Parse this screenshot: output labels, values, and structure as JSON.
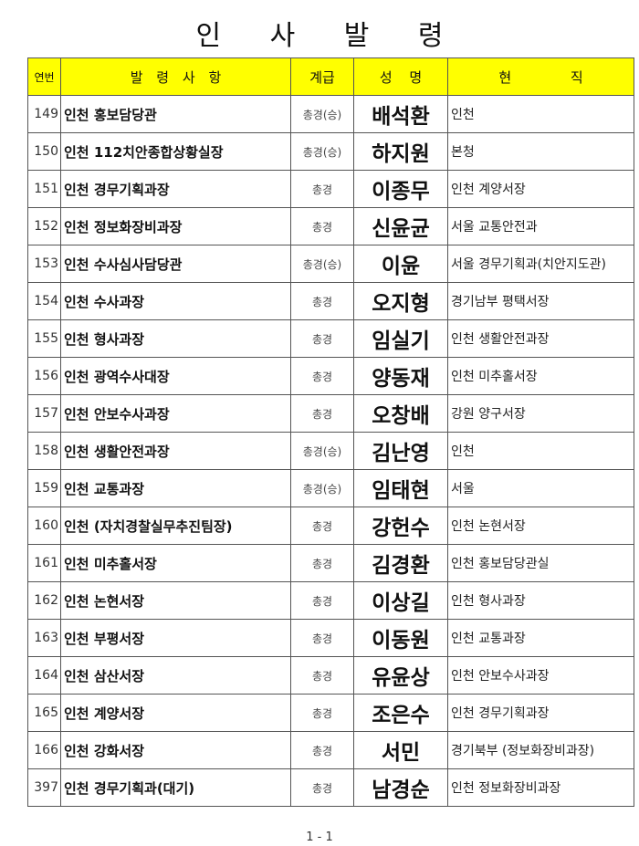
{
  "title": "인 사 발 령",
  "headers": {
    "num": "연번",
    "post": "발 령 사 항",
    "rank": "계급",
    "name": "성 명",
    "current": "현 직"
  },
  "rows": [
    {
      "num": "149",
      "post": "인천 홍보담당관",
      "rank": "총경(승)",
      "name": "배석환",
      "current": "인천"
    },
    {
      "num": "150",
      "post": "인천 112치안종합상황실장",
      "rank": "총경(승)",
      "name": "하지원",
      "current": "본청"
    },
    {
      "num": "151",
      "post": "인천 경무기획과장",
      "rank": "총경",
      "name": "이종무",
      "current": "인천 계양서장"
    },
    {
      "num": "152",
      "post": "인천 정보화장비과장",
      "rank": "총경",
      "name": "신윤균",
      "current": "서울 교통안전과"
    },
    {
      "num": "153",
      "post": "인천 수사심사담당관",
      "rank": "총경(승)",
      "name": "이윤",
      "current": "서울 경무기획과(치안지도관)"
    },
    {
      "num": "154",
      "post": "인천 수사과장",
      "rank": "총경",
      "name": "오지형",
      "current": "경기남부 평택서장"
    },
    {
      "num": "155",
      "post": "인천 형사과장",
      "rank": "총경",
      "name": "임실기",
      "current": "인천 생활안전과장"
    },
    {
      "num": "156",
      "post": "인천 광역수사대장",
      "rank": "총경",
      "name": "양동재",
      "current": "인천 미추홀서장"
    },
    {
      "num": "157",
      "post": "인천 안보수사과장",
      "rank": "총경",
      "name": "오창배",
      "current": "강원 양구서장"
    },
    {
      "num": "158",
      "post": "인천 생활안전과장",
      "rank": "총경(승)",
      "name": "김난영",
      "current": "인천"
    },
    {
      "num": "159",
      "post": "인천 교통과장",
      "rank": "총경(승)",
      "name": "임태현",
      "current": "서울"
    },
    {
      "num": "160",
      "post": "인천 (자치경찰실무추진팀장)",
      "rank": "총경",
      "name": "강헌수",
      "current": "인천 논현서장"
    },
    {
      "num": "161",
      "post": "인천 미추홀서장",
      "rank": "총경",
      "name": "김경환",
      "current": "인천 홍보담당관실"
    },
    {
      "num": "162",
      "post": "인천 논현서장",
      "rank": "총경",
      "name": "이상길",
      "current": "인천 형사과장"
    },
    {
      "num": "163",
      "post": "인천 부평서장",
      "rank": "총경",
      "name": "이동원",
      "current": "인천 교통과장"
    },
    {
      "num": "164",
      "post": "인천 삼산서장",
      "rank": "총경",
      "name": "유윤상",
      "current": "인천 안보수사과장"
    },
    {
      "num": "165",
      "post": "인천 계양서장",
      "rank": "총경",
      "name": "조은수",
      "current": "인천 경무기획과장"
    },
    {
      "num": "166",
      "post": "인천 강화서장",
      "rank": "총경",
      "name": "서민",
      "current": "경기북부 (정보화장비과장)"
    },
    {
      "num": "397",
      "post": "인천 경무기획과(대기)",
      "rank": "총경",
      "name": "남경순",
      "current": "인천 정보화장비과장"
    }
  ],
  "footer": "1 - 1",
  "colors": {
    "header_bg": "#ffff00",
    "border": "#555555"
  }
}
